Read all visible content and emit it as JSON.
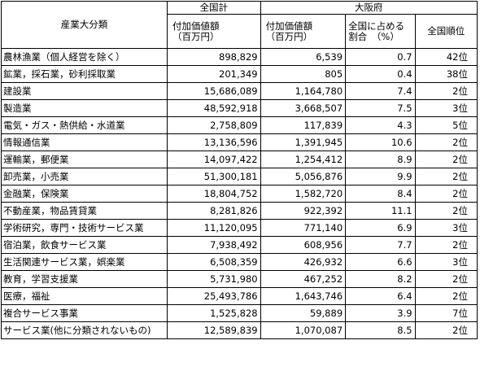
{
  "header": {
    "category": "産業大分類",
    "national_total": "全国計",
    "osaka": "大阪府",
    "value_added_line1": "付加価値額",
    "value_added_line2": "（百万円）",
    "share_line1": "全国に占める",
    "share_line2": "割合　（%）",
    "rank": "全国順位"
  },
  "rows": [
    {
      "industry": "農林漁業（個人経営を除く）",
      "national": "898,829",
      "osaka": "6,539",
      "share": "0.7",
      "rank": "42位"
    },
    {
      "industry": "鉱業，採石業，砂利採取業",
      "national": "201,349",
      "osaka": "805",
      "share": "0.4",
      "rank": "38位"
    },
    {
      "industry": "建設業",
      "national": "15,686,089",
      "osaka": "1,164,780",
      "share": "7.4",
      "rank": "2位"
    },
    {
      "industry": "製造業",
      "national": "48,592,918",
      "osaka": "3,668,507",
      "share": "7.5",
      "rank": "3位"
    },
    {
      "industry": "電気・ガス・熱供給・水道業",
      "national": "2,758,809",
      "osaka": "117,839",
      "share": "4.3",
      "rank": "5位"
    },
    {
      "industry": "情報通信業",
      "national": "13,136,596",
      "osaka": "1,391,945",
      "share": "10.6",
      "rank": "2位"
    },
    {
      "industry": "運輸業，郵便業",
      "national": "14,097,422",
      "osaka": "1,254,412",
      "share": "8.9",
      "rank": "2位"
    },
    {
      "industry": "卸売業，小売業",
      "national": "51,300,181",
      "osaka": "5,056,876",
      "share": "9.9",
      "rank": "2位"
    },
    {
      "industry": "金融業，保険業",
      "national": "18,804,752",
      "osaka": "1,582,720",
      "share": "8.4",
      "rank": "2位"
    },
    {
      "industry": "不動産業，物品賃貸業",
      "national": "8,281,826",
      "osaka": "922,392",
      "share": "11.1",
      "rank": "2位"
    },
    {
      "industry": "学術研究，専門・技術サービス業",
      "national": "11,120,095",
      "osaka": "771,140",
      "share": "6.9",
      "rank": "3位"
    },
    {
      "industry": "宿泊業，飲食サービス業",
      "national": "7,938,492",
      "osaka": "608,956",
      "share": "7.7",
      "rank": "2位"
    },
    {
      "industry": "生活関連サービス業，娯楽業",
      "national": "6,508,359",
      "osaka": "426,932",
      "share": "6.6",
      "rank": "3位"
    },
    {
      "industry": "教育，学習支援業",
      "national": "5,731,980",
      "osaka": "467,252",
      "share": "8.2",
      "rank": "2位"
    },
    {
      "industry": "医療，福祉",
      "national": "25,493,786",
      "osaka": "1,643,746",
      "share": "6.4",
      "rank": "2位"
    },
    {
      "industry": "複合サービス事業",
      "national": "1,525,828",
      "osaka": "59,889",
      "share": "3.9",
      "rank": "7位"
    },
    {
      "industry": "サービス業(他に分類されないもの)",
      "national": "12,589,839",
      "osaka": "1,070,087",
      "share": "8.5",
      "rank": "2位"
    }
  ]
}
